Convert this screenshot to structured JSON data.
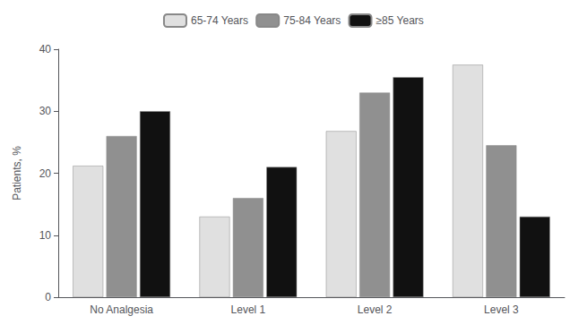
{
  "chart_data": {
    "type": "bar",
    "categories": [
      "No Analgesia",
      "Level 1",
      "Level 2",
      "Level 3"
    ],
    "series": [
      {
        "name": "65-74 Years",
        "color": "#e0e0e0",
        "values": [
          21.2,
          13.0,
          26.8,
          37.5
        ]
      },
      {
        "name": "75-84 Years",
        "color": "#909090",
        "values": [
          26.0,
          16.0,
          33.0,
          24.5
        ]
      },
      {
        "name": "≥85 Years",
        "color": "#111111",
        "values": [
          30.0,
          21.0,
          35.5,
          13.0
        ]
      }
    ],
    "ylabel": "Patients, %",
    "ylim": [
      0,
      40
    ],
    "yticks": [
      0,
      10,
      20,
      30,
      40
    ],
    "grid": false,
    "legend": "top"
  }
}
